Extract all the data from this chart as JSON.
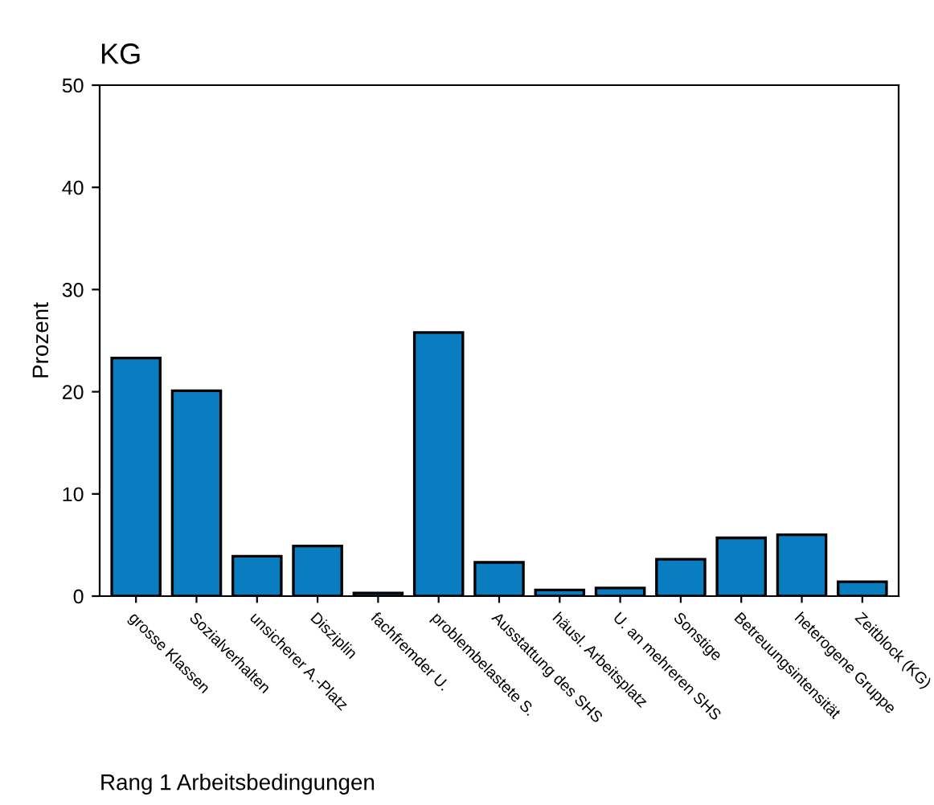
{
  "chart_data": {
    "type": "bar",
    "title": "KG",
    "ylabel": "Prozent",
    "categories": [
      "grosse Klassen",
      "Sozialverhalten",
      "unsicherer A.-Platz",
      "Disziplin",
      "fachfremder U.",
      "problembelastete S.",
      "Ausstattung des SHS",
      "häusl. Arbeitsplatz",
      "U. an mehreren SHS",
      "Sonstige",
      "Betreuungsintensität",
      "heterogene Gruppe",
      "Zeitblock (KG)"
    ],
    "values": [
      23.3,
      20.1,
      3.9,
      4.9,
      0.3,
      25.8,
      3.3,
      0.6,
      0.8,
      3.6,
      5.7,
      6.0,
      1.4
    ],
    "color": "#0a7dc0",
    "ylim": [
      0,
      50
    ],
    "yticks": [
      0,
      10,
      20,
      30,
      40,
      50
    ],
    "grid": false,
    "annotations": [
      "Rang 1 Arbeitsbedingungen"
    ]
  }
}
